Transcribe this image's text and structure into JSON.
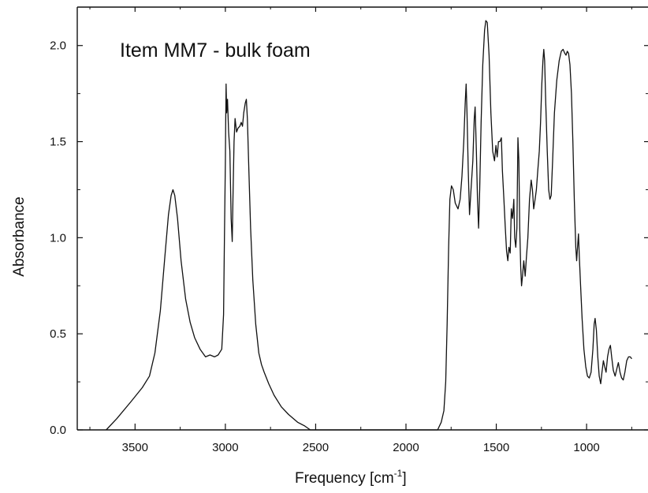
{
  "chart_data": {
    "type": "line",
    "title": "Item MM7 - bulk foam",
    "xlabel": "Frequency [cm",
    "xlabel_sup": "-1",
    "xlabel_end": "]",
    "ylabel": "Absorbance",
    "xlim": [
      3820,
      660
    ],
    "ylim": [
      0.0,
      2.2
    ],
    "x_reversed": true,
    "grid": false,
    "x_ticks": [
      3500,
      3000,
      2500,
      2000,
      1500,
      1000
    ],
    "x_tick_labels": [
      "3500",
      "3000",
      "2500",
      "2000",
      "1500",
      "1000"
    ],
    "y_ticks": [
      0.0,
      0.5,
      1.0,
      1.5,
      2.0
    ],
    "y_tick_labels": [
      "0.0",
      "0.5",
      "1.0",
      "1.5",
      "2.0"
    ],
    "series": [
      {
        "color": "#111111",
        "points": [
          [
            3660,
            0.0
          ],
          [
            3600,
            0.06
          ],
          [
            3520,
            0.15
          ],
          [
            3460,
            0.22
          ],
          [
            3420,
            0.28
          ],
          [
            3390,
            0.4
          ],
          [
            3360,
            0.62
          ],
          [
            3335,
            0.9
          ],
          [
            3315,
            1.12
          ],
          [
            3300,
            1.22
          ],
          [
            3290,
            1.25
          ],
          [
            3280,
            1.22
          ],
          [
            3265,
            1.1
          ],
          [
            3245,
            0.88
          ],
          [
            3220,
            0.68
          ],
          [
            3195,
            0.56
          ],
          [
            3170,
            0.48
          ],
          [
            3140,
            0.42
          ],
          [
            3110,
            0.38
          ],
          [
            3085,
            0.39
          ],
          [
            3060,
            0.38
          ],
          [
            3040,
            0.39
          ],
          [
            3020,
            0.42
          ],
          [
            3010,
            0.6
          ],
          [
            3005,
            1.0
          ],
          [
            3000,
            1.4
          ],
          [
            2998,
            1.6
          ],
          [
            2996,
            1.8
          ],
          [
            2993,
            1.65
          ],
          [
            2988,
            1.72
          ],
          [
            2982,
            1.55
          ],
          [
            2975,
            1.45
          ],
          [
            2968,
            1.1
          ],
          [
            2962,
            0.98
          ],
          [
            2958,
            1.2
          ],
          [
            2952,
            1.5
          ],
          [
            2946,
            1.62
          ],
          [
            2938,
            1.55
          ],
          [
            2930,
            1.57
          ],
          [
            2920,
            1.58
          ],
          [
            2912,
            1.6
          ],
          [
            2905,
            1.58
          ],
          [
            2898,
            1.65
          ],
          [
            2890,
            1.7
          ],
          [
            2884,
            1.72
          ],
          [
            2878,
            1.62
          ],
          [
            2870,
            1.35
          ],
          [
            2860,
            1.05
          ],
          [
            2848,
            0.78
          ],
          [
            2832,
            0.55
          ],
          [
            2815,
            0.4
          ],
          [
            2800,
            0.34
          ],
          [
            2785,
            0.3
          ],
          [
            2760,
            0.24
          ],
          [
            2730,
            0.18
          ],
          [
            2690,
            0.12
          ],
          [
            2650,
            0.08
          ],
          [
            2600,
            0.04
          ],
          [
            2560,
            0.02
          ],
          [
            2530,
            0.0
          ],
          [
            1825,
            0.0
          ],
          [
            1805,
            0.04
          ],
          [
            1790,
            0.1
          ],
          [
            1780,
            0.25
          ],
          [
            1772,
            0.55
          ],
          [
            1764,
            0.95
          ],
          [
            1757,
            1.2
          ],
          [
            1748,
            1.27
          ],
          [
            1738,
            1.25
          ],
          [
            1727,
            1.18
          ],
          [
            1712,
            1.15
          ],
          [
            1700,
            1.2
          ],
          [
            1690,
            1.32
          ],
          [
            1680,
            1.5
          ],
          [
            1672,
            1.7
          ],
          [
            1667,
            1.8
          ],
          [
            1662,
            1.65
          ],
          [
            1655,
            1.35
          ],
          [
            1648,
            1.12
          ],
          [
            1640,
            1.25
          ],
          [
            1630,
            1.4
          ],
          [
            1622,
            1.62
          ],
          [
            1617,
            1.68
          ],
          [
            1610,
            1.45
          ],
          [
            1604,
            1.2
          ],
          [
            1598,
            1.05
          ],
          [
            1592,
            1.25
          ],
          [
            1584,
            1.6
          ],
          [
            1575,
            1.9
          ],
          [
            1565,
            2.08
          ],
          [
            1558,
            2.13
          ],
          [
            1550,
            2.12
          ],
          [
            1540,
            1.95
          ],
          [
            1530,
            1.65
          ],
          [
            1520,
            1.45
          ],
          [
            1510,
            1.4
          ],
          [
            1502,
            1.48
          ],
          [
            1495,
            1.42
          ],
          [
            1488,
            1.5
          ],
          [
            1480,
            1.5
          ],
          [
            1472,
            1.52
          ],
          [
            1466,
            1.35
          ],
          [
            1458,
            1.2
          ],
          [
            1450,
            1.05
          ],
          [
            1443,
            0.93
          ],
          [
            1436,
            0.88
          ],
          [
            1430,
            0.95
          ],
          [
            1423,
            0.92
          ],
          [
            1417,
            1.15
          ],
          [
            1410,
            1.1
          ],
          [
            1403,
            1.2
          ],
          [
            1398,
            1.0
          ],
          [
            1392,
            0.95
          ],
          [
            1386,
            1.05
          ],
          [
            1380,
            1.52
          ],
          [
            1375,
            1.4
          ],
          [
            1370,
            1.05
          ],
          [
            1365,
            0.85
          ],
          [
            1360,
            0.75
          ],
          [
            1355,
            0.8
          ],
          [
            1348,
            0.88
          ],
          [
            1340,
            0.8
          ],
          [
            1333,
            0.9
          ],
          [
            1325,
            1.0
          ],
          [
            1316,
            1.2
          ],
          [
            1307,
            1.3
          ],
          [
            1300,
            1.25
          ],
          [
            1293,
            1.15
          ],
          [
            1285,
            1.2
          ],
          [
            1278,
            1.25
          ],
          [
            1270,
            1.35
          ],
          [
            1262,
            1.45
          ],
          [
            1255,
            1.6
          ],
          [
            1248,
            1.8
          ],
          [
            1242,
            1.92
          ],
          [
            1237,
            1.98
          ],
          [
            1232,
            1.92
          ],
          [
            1226,
            1.7
          ],
          [
            1218,
            1.45
          ],
          [
            1210,
            1.25
          ],
          [
            1203,
            1.2
          ],
          [
            1196,
            1.22
          ],
          [
            1188,
            1.4
          ],
          [
            1178,
            1.65
          ],
          [
            1165,
            1.82
          ],
          [
            1152,
            1.92
          ],
          [
            1140,
            1.97
          ],
          [
            1130,
            1.98
          ],
          [
            1121,
            1.96
          ],
          [
            1114,
            1.95
          ],
          [
            1107,
            1.97
          ],
          [
            1100,
            1.96
          ],
          [
            1092,
            1.9
          ],
          [
            1084,
            1.75
          ],
          [
            1076,
            1.5
          ],
          [
            1068,
            1.2
          ],
          [
            1060,
            0.95
          ],
          [
            1055,
            0.88
          ],
          [
            1050,
            0.95
          ],
          [
            1045,
            1.02
          ],
          [
            1040,
            0.9
          ],
          [
            1033,
            0.75
          ],
          [
            1025,
            0.58
          ],
          [
            1015,
            0.42
          ],
          [
            1005,
            0.33
          ],
          [
            995,
            0.28
          ],
          [
            985,
            0.27
          ],
          [
            975,
            0.3
          ],
          [
            965,
            0.42
          ],
          [
            958,
            0.55
          ],
          [
            953,
            0.58
          ],
          [
            946,
            0.52
          ],
          [
            938,
            0.38
          ],
          [
            930,
            0.28
          ],
          [
            922,
            0.24
          ],
          [
            915,
            0.3
          ],
          [
            907,
            0.36
          ],
          [
            900,
            0.33
          ],
          [
            892,
            0.3
          ],
          [
            884,
            0.38
          ],
          [
            876,
            0.42
          ],
          [
            868,
            0.44
          ],
          [
            861,
            0.38
          ],
          [
            852,
            0.31
          ],
          [
            842,
            0.28
          ],
          [
            832,
            0.32
          ],
          [
            824,
            0.35
          ],
          [
            815,
            0.3
          ],
          [
            806,
            0.27
          ],
          [
            797,
            0.26
          ],
          [
            788,
            0.3
          ],
          [
            778,
            0.36
          ],
          [
            768,
            0.38
          ],
          [
            758,
            0.38
          ],
          [
            750,
            0.37
          ]
        ]
      }
    ]
  }
}
